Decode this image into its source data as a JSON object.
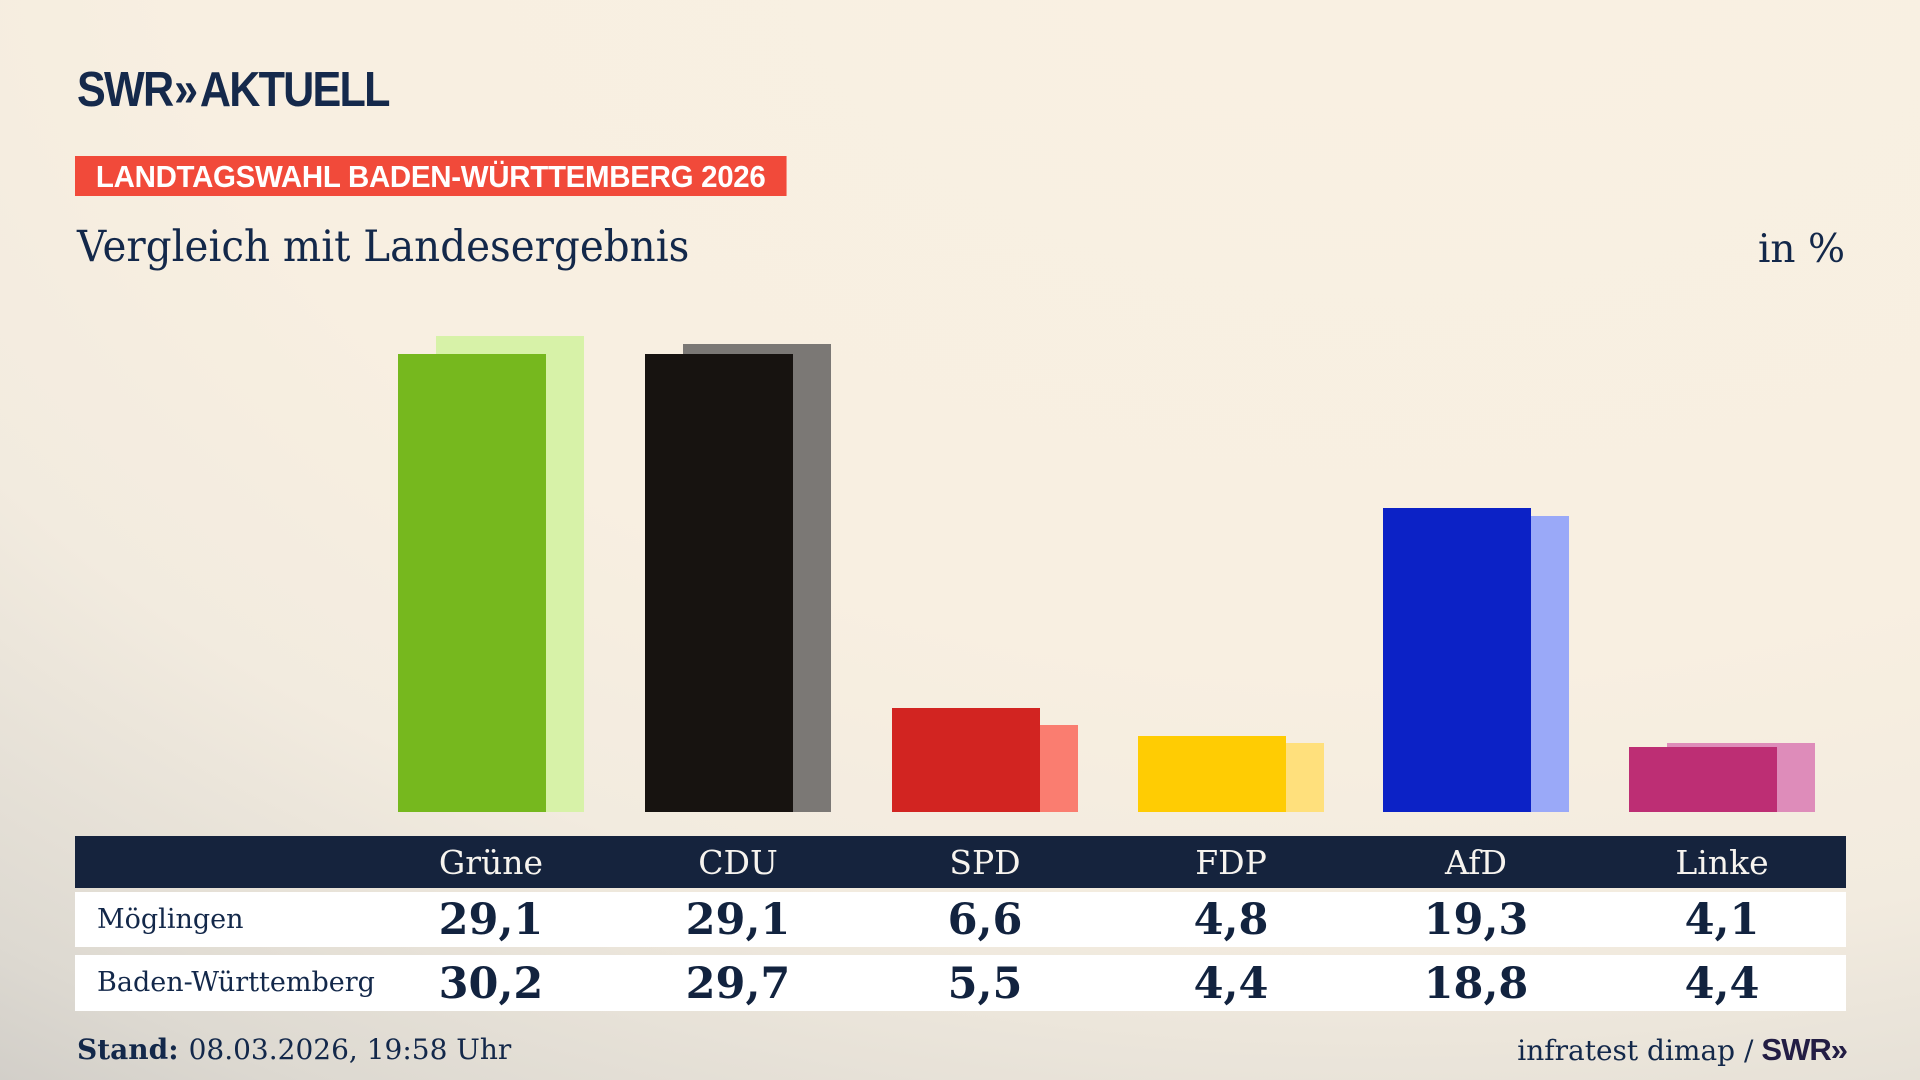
{
  "brand": {
    "swr": "SWR",
    "chevrons": "»",
    "product": "AKTUELL"
  },
  "badge": {
    "label": "LANDTAGSWAHL BADEN-WÜRTTEMBERG 2026"
  },
  "header": {
    "title": "Vergleich mit Landesergebnis",
    "unit": "in %"
  },
  "chart_data": {
    "type": "bar",
    "title": "Vergleich mit Landesergebnis",
    "unit": "in %",
    "categories": [
      "Grüne",
      "CDU",
      "SPD",
      "FDP",
      "AfD",
      "Linke"
    ],
    "series": [
      {
        "name": "Möglingen",
        "values": [
          29.1,
          29.1,
          6.6,
          4.8,
          19.3,
          4.1
        ]
      },
      {
        "name": "Baden-Württemberg",
        "values": [
          30.2,
          29.7,
          5.5,
          4.4,
          18.8,
          4.4
        ]
      }
    ],
    "series_colors": [
      [
        "#76b81e",
        "#171310",
        "#d22421",
        "#ffcc03",
        "#0c22c6",
        "#bd2e74"
      ],
      [
        "#d7f2a8",
        "#7b7875",
        "#fa7d70",
        "#ffe07c",
        "#9aa9f8",
        "#de8cba"
      ]
    ],
    "ylim": [
      0,
      34
    ],
    "grid": false,
    "legend": "table-below",
    "value_format": "decimal-comma"
  },
  "colors": {
    "badge_red": "#f14a3a",
    "navy_text": "#13284a",
    "band_navy": "#15233d",
    "row_bg": "#ffffff"
  },
  "footer": {
    "stand_label": "Stand:",
    "stand_value": "08.03.2026, 19:58 Uhr",
    "source_text": "infratest dimap /",
    "source_brand": "SWR",
    "source_chevrons": "»"
  }
}
